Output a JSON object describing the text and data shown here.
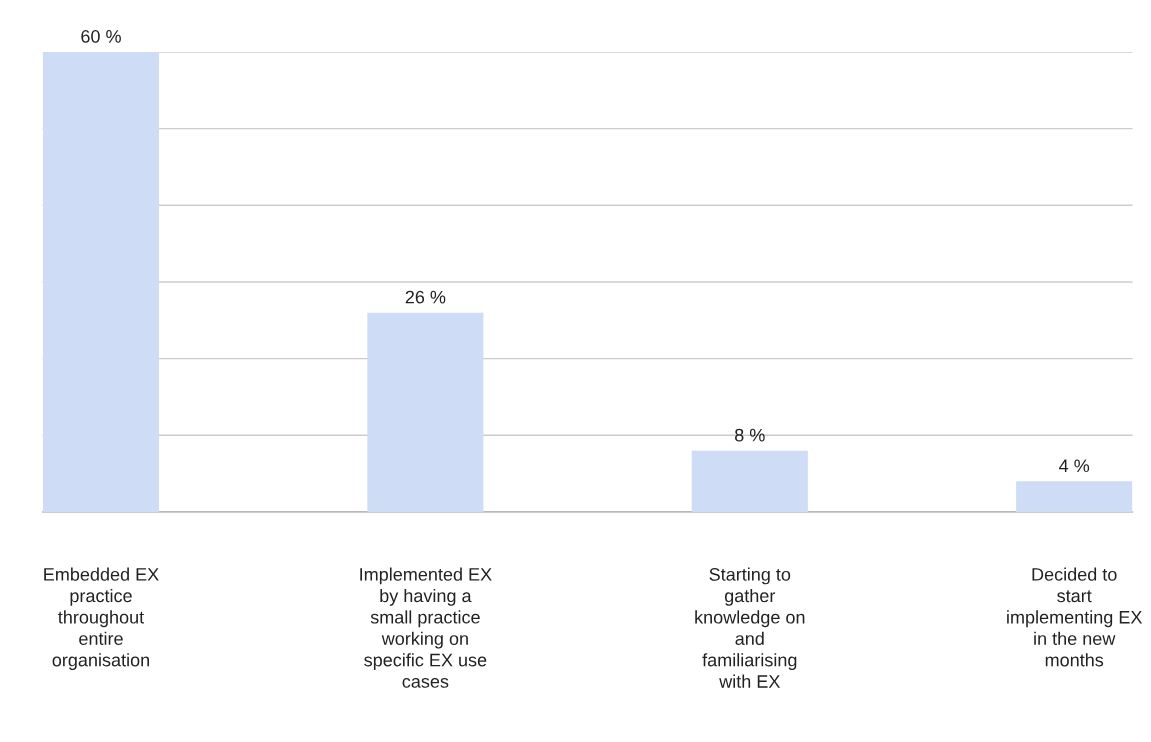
{
  "chart_data": {
    "type": "bar",
    "categories": [
      "Embedded EX practice throughout entire organisation",
      "Implemented EX by having a small practice working on specific EX use cases",
      "Starting to gather knowledge on and familiarising with EX",
      "Decided to start implementing EX in the new months"
    ],
    "values": [
      60,
      26,
      8,
      4
    ],
    "value_labels": [
      "60 %",
      "26 %",
      "8 %",
      "4 %"
    ],
    "color": "#cfdcf5",
    "ylim": [
      0,
      60
    ],
    "yticks": [
      {
        "value": 0,
        "label": null
      },
      {
        "value": 10,
        "label": null
      },
      {
        "value": 20,
        "label": null
      },
      {
        "value": 30,
        "label": null
      },
      {
        "value": 40,
        "label": null
      },
      {
        "value": 50,
        "label": null
      },
      {
        "value": 60,
        "label": null
      }
    ],
    "grid": "y",
    "tick_labels": "x"
  }
}
